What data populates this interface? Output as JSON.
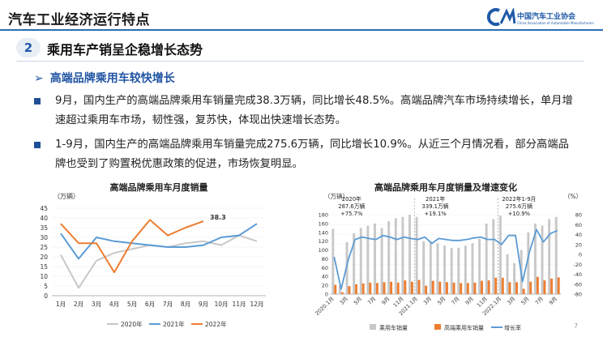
{
  "header": {
    "title": "汽车工业经济运行特点",
    "logo_cn": "中国汽车工业协会",
    "logo_en": "China Association of Automobile Manufacturers",
    "logo_mark": "CA"
  },
  "section": {
    "number": "2",
    "title": "乘用车产销呈企稳增长态势"
  },
  "subheading": {
    "arrow": "➢",
    "text": "高端品牌乘用车较快增长"
  },
  "bullets": [
    "9月，国内生产的高端品牌乘用车销量完成38.3万辆，同比增长48.5%。高端品牌汽车市场持续增长，单月增速超过乘用车市场，韧性强，复苏快，体现出快速增长态势。",
    "1-9月，国内生产的高端品牌乘用车销量完成275.6万辆，同比增长10.9%。从近三个月情况看，部分高端品牌也受到了购置税优惠政策的促进，市场恢复明显。"
  ],
  "page_number": "7",
  "colors": {
    "accent_blue": "#1f5aa8",
    "series_2020": "#c8c8c8",
    "series_2021": "#5b9bd5",
    "series_2022": "#ed7d31",
    "bar_gray": "#c8c8c8",
    "bar_orange": "#ed7d31"
  },
  "chart_data": [
    {
      "type": "line",
      "title": "高端品牌乘用车月度销量",
      "ylabel": "（万辆）",
      "categories": [
        "1月",
        "2月",
        "3月",
        "4月",
        "5月",
        "6月",
        "7月",
        "8月",
        "9月",
        "10月",
        "11月",
        "12月"
      ],
      "ylim": [
        0,
        45
      ],
      "yticks": [
        0,
        5,
        10,
        15,
        20,
        25,
        30,
        35,
        40,
        45
      ],
      "series": [
        {
          "name": "2020年",
          "color": "#c8c8c8",
          "values": [
            21,
            4,
            18,
            22,
            24,
            26,
            25,
            27,
            28,
            26,
            31,
            28
          ]
        },
        {
          "name": "2021年",
          "color": "#5b9bd5",
          "values": [
            32,
            19,
            30,
            28,
            27,
            26,
            25,
            25,
            26,
            30,
            31,
            37
          ]
        },
        {
          "name": "2022年",
          "color": "#ed7d31",
          "values": [
            37,
            27,
            27,
            12,
            28,
            39,
            31,
            35,
            38.3,
            null,
            null,
            null
          ]
        }
      ],
      "data_labels": [
        {
          "series": "2022年",
          "index": 8,
          "text": "38.3"
        }
      ],
      "legend": "bottom"
    },
    {
      "type": "bar",
      "title": "高端品牌乘用车月度销量及增速变化",
      "ylabel_left": "（万辆）",
      "ylabel_right": "（%）",
      "ylim_left": [
        0,
        180
      ],
      "yticks_left": [
        0,
        20,
        40,
        60,
        80,
        100,
        120,
        140,
        160,
        180
      ],
      "ylim_right": [
        -80,
        80
      ],
      "yticks_right": [
        -80,
        -60,
        -40,
        -20,
        0,
        20,
        40,
        60,
        80
      ],
      "x_tick_labels": [
        "2020.1月",
        "3月",
        "5月",
        "7月",
        "9月",
        "11月",
        "2021.1月",
        "3月",
        "5月",
        "7月",
        "9月",
        "11月",
        "2022.1月",
        "3月",
        "5月",
        "7月",
        "9月"
      ],
      "series": [
        {
          "name": "乘用车销量",
          "color": "#c8c8c8",
          "axis": "left",
          "values": [
            148,
            20,
            118,
            138,
            150,
            155,
            160,
            150,
            165,
            172,
            175,
            180,
            175,
            120,
            120,
            115,
            110,
            105,
            105,
            110,
            115,
            125,
            160,
            170,
            178,
            90,
            70,
            100,
            140,
            160,
            155,
            170,
            175
          ]
        },
        {
          "name": "高端乘用车销量",
          "color": "#ed7d31",
          "axis": "left",
          "values": [
            21,
            4,
            18,
            22,
            24,
            26,
            25,
            27,
            28,
            26,
            31,
            28,
            32,
            19,
            30,
            28,
            27,
            26,
            25,
            25,
            26,
            30,
            31,
            37,
            37,
            27,
            27,
            12,
            28,
            39,
            31,
            35,
            38
          ]
        },
        {
          "name": "增长率",
          "color": "#5b9bd5",
          "axis": "right",
          "values": [
            -5,
            -70,
            -12,
            30,
            35,
            32,
            30,
            38,
            35,
            30,
            35,
            32,
            30,
            35,
            22,
            32,
            30,
            28,
            28,
            30,
            33,
            35,
            30,
            30,
            20,
            38,
            38,
            -55,
            5,
            50,
            25,
            42,
            48
          ]
        }
      ],
      "annotations": [
        {
          "lines": [
            "2020年",
            "287.6万辆",
            "+75.7%"
          ]
        },
        {
          "lines": [
            "2021年",
            "339.1万辆",
            "+19.1%"
          ]
        },
        {
          "lines": [
            "2022年1-9月",
            "275.6万辆",
            "+10.9%"
          ]
        }
      ],
      "legend": "bottom"
    }
  ]
}
